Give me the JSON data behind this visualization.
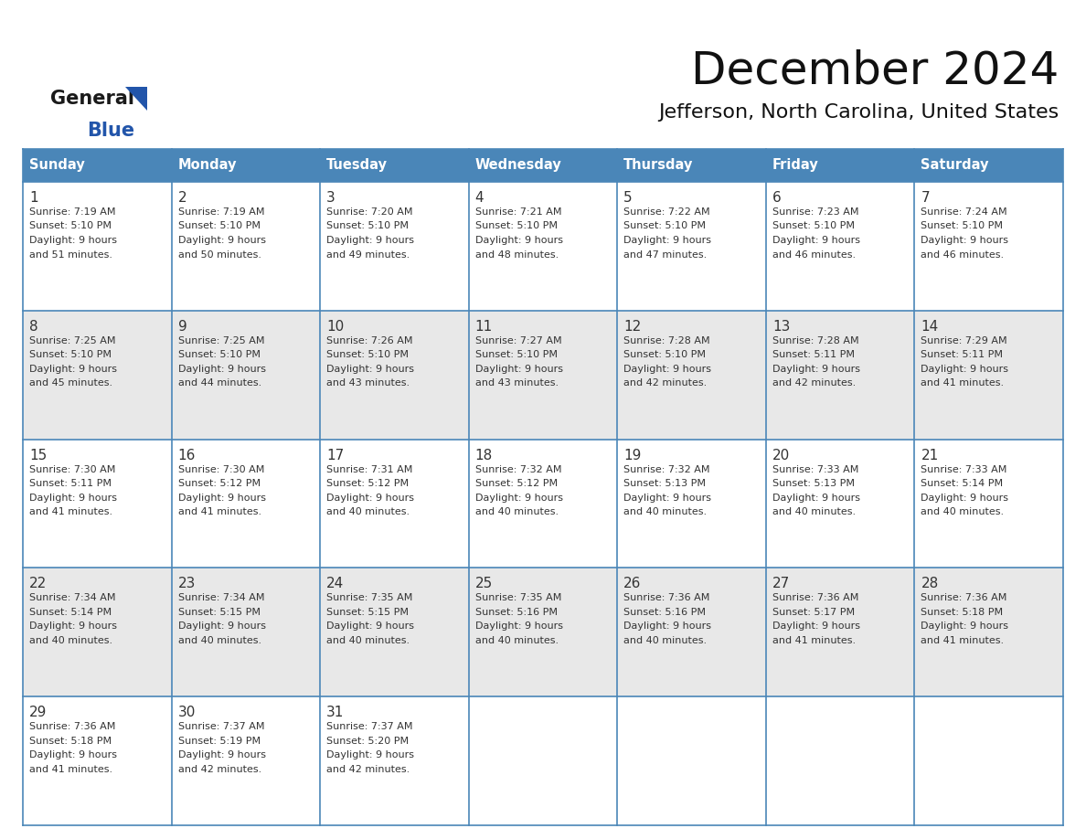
{
  "title": "December 2024",
  "subtitle": "Jefferson, North Carolina, United States",
  "header_color": "#4a86b8",
  "header_text_color": "#ffffff",
  "cell_bg_even": "#ffffff",
  "cell_bg_odd": "#e8e8e8",
  "border_color": "#4a86b8",
  "text_color": "#333333",
  "day_names": [
    "Sunday",
    "Monday",
    "Tuesday",
    "Wednesday",
    "Thursday",
    "Friday",
    "Saturday"
  ],
  "days": [
    {
      "date": 1,
      "col": 0,
      "row": 0,
      "sunrise": "7:19 AM",
      "sunset": "5:10 PM",
      "daylight": "9 hours and 51 minutes."
    },
    {
      "date": 2,
      "col": 1,
      "row": 0,
      "sunrise": "7:19 AM",
      "sunset": "5:10 PM",
      "daylight": "9 hours and 50 minutes."
    },
    {
      "date": 3,
      "col": 2,
      "row": 0,
      "sunrise": "7:20 AM",
      "sunset": "5:10 PM",
      "daylight": "9 hours and 49 minutes."
    },
    {
      "date": 4,
      "col": 3,
      "row": 0,
      "sunrise": "7:21 AM",
      "sunset": "5:10 PM",
      "daylight": "9 hours and 48 minutes."
    },
    {
      "date": 5,
      "col": 4,
      "row": 0,
      "sunrise": "7:22 AM",
      "sunset": "5:10 PM",
      "daylight": "9 hours and 47 minutes."
    },
    {
      "date": 6,
      "col": 5,
      "row": 0,
      "sunrise": "7:23 AM",
      "sunset": "5:10 PM",
      "daylight": "9 hours and 46 minutes."
    },
    {
      "date": 7,
      "col": 6,
      "row": 0,
      "sunrise": "7:24 AM",
      "sunset": "5:10 PM",
      "daylight": "9 hours and 46 minutes."
    },
    {
      "date": 8,
      "col": 0,
      "row": 1,
      "sunrise": "7:25 AM",
      "sunset": "5:10 PM",
      "daylight": "9 hours and 45 minutes."
    },
    {
      "date": 9,
      "col": 1,
      "row": 1,
      "sunrise": "7:25 AM",
      "sunset": "5:10 PM",
      "daylight": "9 hours and 44 minutes."
    },
    {
      "date": 10,
      "col": 2,
      "row": 1,
      "sunrise": "7:26 AM",
      "sunset": "5:10 PM",
      "daylight": "9 hours and 43 minutes."
    },
    {
      "date": 11,
      "col": 3,
      "row": 1,
      "sunrise": "7:27 AM",
      "sunset": "5:10 PM",
      "daylight": "9 hours and 43 minutes."
    },
    {
      "date": 12,
      "col": 4,
      "row": 1,
      "sunrise": "7:28 AM",
      "sunset": "5:10 PM",
      "daylight": "9 hours and 42 minutes."
    },
    {
      "date": 13,
      "col": 5,
      "row": 1,
      "sunrise": "7:28 AM",
      "sunset": "5:11 PM",
      "daylight": "9 hours and 42 minutes."
    },
    {
      "date": 14,
      "col": 6,
      "row": 1,
      "sunrise": "7:29 AM",
      "sunset": "5:11 PM",
      "daylight": "9 hours and 41 minutes."
    },
    {
      "date": 15,
      "col": 0,
      "row": 2,
      "sunrise": "7:30 AM",
      "sunset": "5:11 PM",
      "daylight": "9 hours and 41 minutes."
    },
    {
      "date": 16,
      "col": 1,
      "row": 2,
      "sunrise": "7:30 AM",
      "sunset": "5:12 PM",
      "daylight": "9 hours and 41 minutes."
    },
    {
      "date": 17,
      "col": 2,
      "row": 2,
      "sunrise": "7:31 AM",
      "sunset": "5:12 PM",
      "daylight": "9 hours and 40 minutes."
    },
    {
      "date": 18,
      "col": 3,
      "row": 2,
      "sunrise": "7:32 AM",
      "sunset": "5:12 PM",
      "daylight": "9 hours and 40 minutes."
    },
    {
      "date": 19,
      "col": 4,
      "row": 2,
      "sunrise": "7:32 AM",
      "sunset": "5:13 PM",
      "daylight": "9 hours and 40 minutes."
    },
    {
      "date": 20,
      "col": 5,
      "row": 2,
      "sunrise": "7:33 AM",
      "sunset": "5:13 PM",
      "daylight": "9 hours and 40 minutes."
    },
    {
      "date": 21,
      "col": 6,
      "row": 2,
      "sunrise": "7:33 AM",
      "sunset": "5:14 PM",
      "daylight": "9 hours and 40 minutes."
    },
    {
      "date": 22,
      "col": 0,
      "row": 3,
      "sunrise": "7:34 AM",
      "sunset": "5:14 PM",
      "daylight": "9 hours and 40 minutes."
    },
    {
      "date": 23,
      "col": 1,
      "row": 3,
      "sunrise": "7:34 AM",
      "sunset": "5:15 PM",
      "daylight": "9 hours and 40 minutes."
    },
    {
      "date": 24,
      "col": 2,
      "row": 3,
      "sunrise": "7:35 AM",
      "sunset": "5:15 PM",
      "daylight": "9 hours and 40 minutes."
    },
    {
      "date": 25,
      "col": 3,
      "row": 3,
      "sunrise": "7:35 AM",
      "sunset": "5:16 PM",
      "daylight": "9 hours and 40 minutes."
    },
    {
      "date": 26,
      "col": 4,
      "row": 3,
      "sunrise": "7:36 AM",
      "sunset": "5:16 PM",
      "daylight": "9 hours and 40 minutes."
    },
    {
      "date": 27,
      "col": 5,
      "row": 3,
      "sunrise": "7:36 AM",
      "sunset": "5:17 PM",
      "daylight": "9 hours and 41 minutes."
    },
    {
      "date": 28,
      "col": 6,
      "row": 3,
      "sunrise": "7:36 AM",
      "sunset": "5:18 PM",
      "daylight": "9 hours and 41 minutes."
    },
    {
      "date": 29,
      "col": 0,
      "row": 4,
      "sunrise": "7:36 AM",
      "sunset": "5:18 PM",
      "daylight": "9 hours and 41 minutes."
    },
    {
      "date": 30,
      "col": 1,
      "row": 4,
      "sunrise": "7:37 AM",
      "sunset": "5:19 PM",
      "daylight": "9 hours and 42 minutes."
    },
    {
      "date": 31,
      "col": 2,
      "row": 4,
      "sunrise": "7:37 AM",
      "sunset": "5:20 PM",
      "daylight": "9 hours and 42 minutes."
    }
  ],
  "logo_color_general": "#1a1a1a",
  "logo_color_blue": "#2255aa",
  "logo_triangle_color": "#2255aa"
}
